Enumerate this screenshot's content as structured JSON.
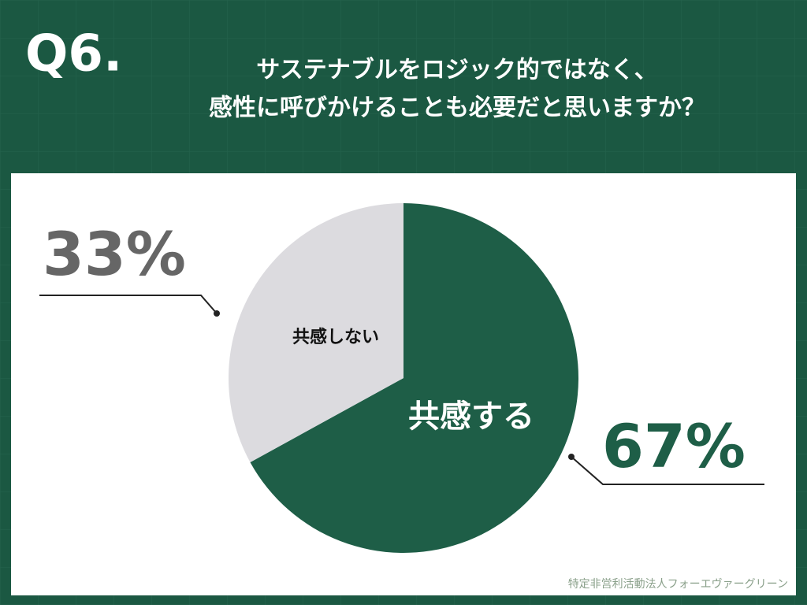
{
  "label": "Q6.",
  "title_lines": [
    "サステナブルをロジック的ではなく、",
    "感性に呼びかけることも必要だと思いますか？"
  ],
  "chart_data": {
    "type": "pie",
    "categories": [
      "共感する",
      "共感しない"
    ],
    "values": [
      67,
      33
    ],
    "value_labels": [
      "67%",
      "33%"
    ],
    "colors": [
      "#1e5e47",
      "#dcdbdf"
    ]
  },
  "footer": "特定非営利活動法人フォーエヴァーグリーン"
}
